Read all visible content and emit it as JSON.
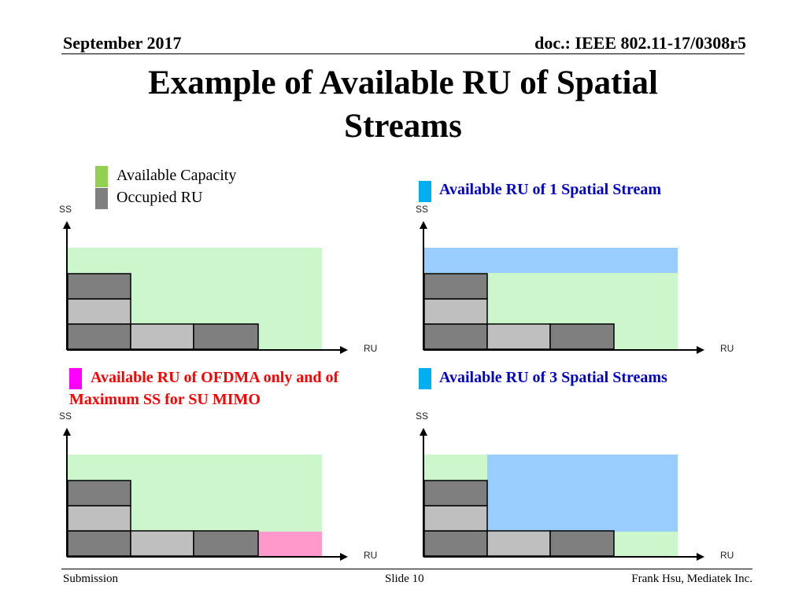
{
  "header": {
    "date": "September 2017",
    "doc_id": "doc.: IEEE 802.11-17/0308r5"
  },
  "title": {
    "line1": "Example of Available RU of Spatial",
    "line2": "Streams"
  },
  "legend": {
    "available_capacity": "Available Capacity",
    "occupied_ru": "Occupied RU"
  },
  "colors": {
    "available": "#ccf7cc",
    "occupied_dark": "#7f7f7f",
    "occupied_light": "#bfbfbf",
    "ss1": "#99ccff",
    "ofdma": "#ff99cc",
    "legend_green": "#92d050",
    "legend_gray": "#808080",
    "legend_blue": "#00b0f0",
    "legend_magenta": "#ff00ff",
    "red_text": "#ff0000",
    "blue_text": "#0000cc"
  },
  "diagrams": [
    {
      "id": "base",
      "caption": "",
      "y_axis": "SS",
      "x_axis": "RU"
    },
    {
      "id": "ss1",
      "caption": "Available RU of 1 Spatial Stream",
      "y_axis": "SS",
      "x_axis": "RU"
    },
    {
      "id": "ofdma",
      "caption_line1": "Available RU of OFDMA only  and of",
      "caption_line2": "Maximum SS for SU MIMO",
      "y_axis": "SS",
      "x_axis": "RU"
    },
    {
      "id": "ss3",
      "caption": "Available RU of 3 Spatial Streams",
      "y_axis": "SS",
      "x_axis": "RU"
    }
  ],
  "footer": {
    "left": "Submission",
    "center": "Slide 10",
    "right": "Frank Hsu, Mediatek Inc."
  }
}
